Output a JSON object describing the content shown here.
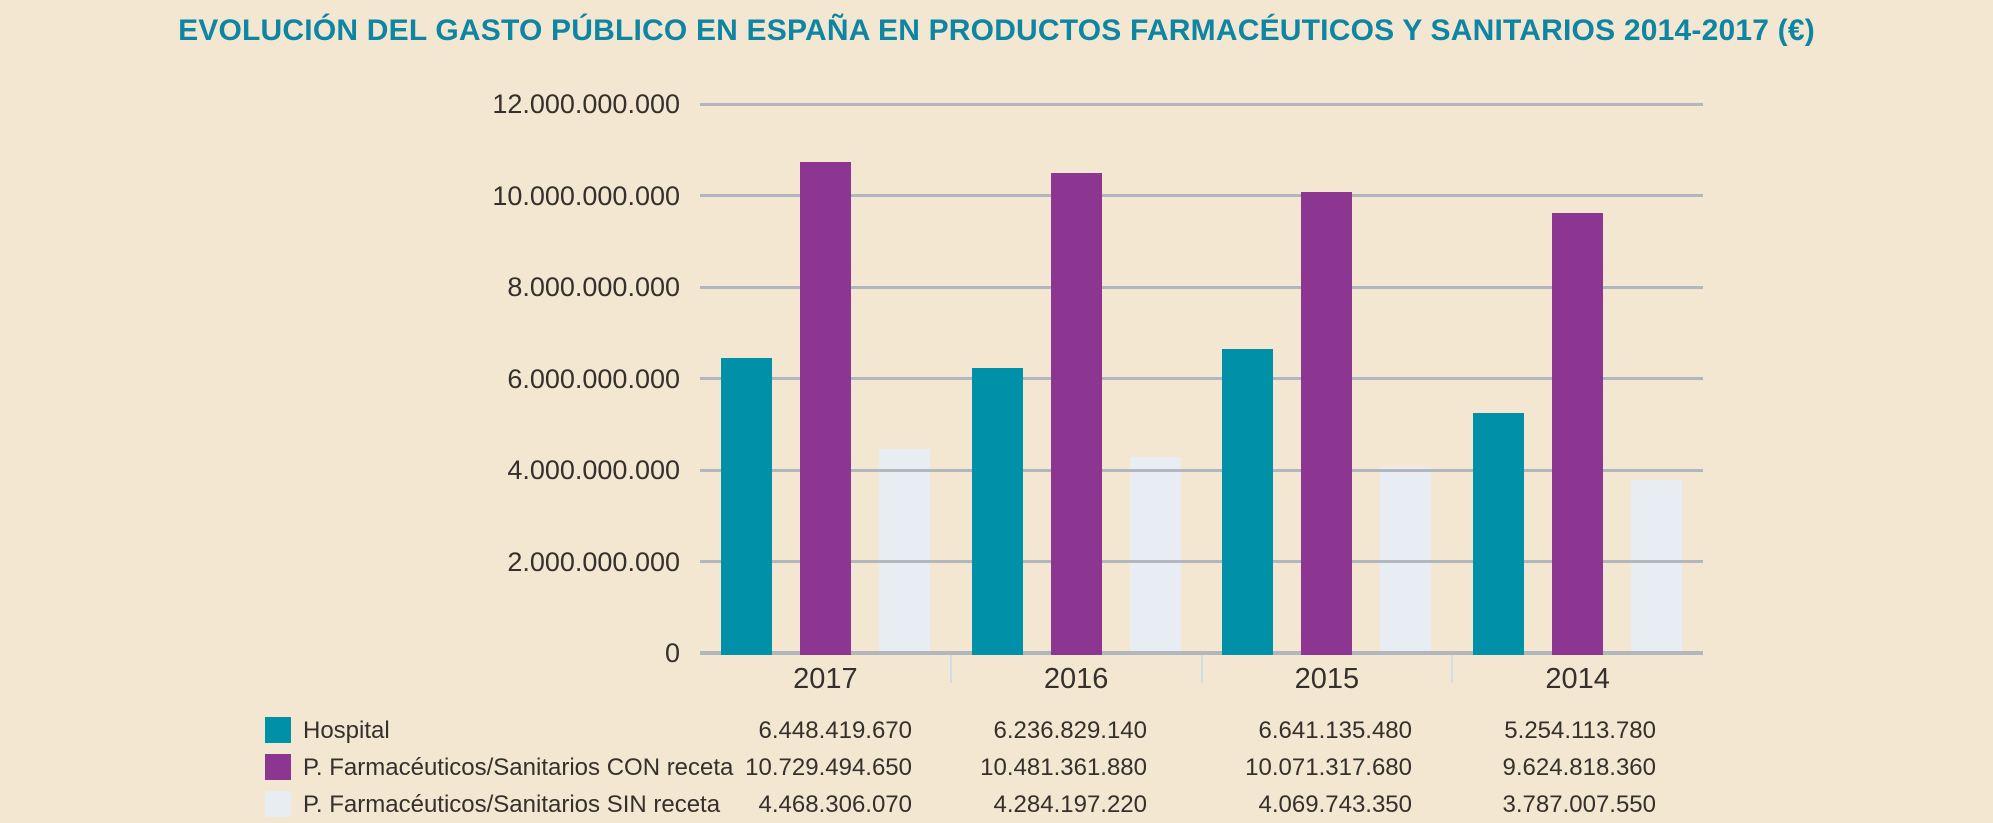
{
  "background_color": "#f3e7d1",
  "chart_data": {
    "type": "bar",
    "title": "EVOLUCIÓN DEL GASTO PÚBLICO EN ESPAÑA EN PRODUCTOS FARMACÉUTICOS Y SANITARIOS 2014-2017 (€)",
    "title_color": "#0d85a3",
    "categories": [
      "2017",
      "2016",
      "2015",
      "2014"
    ],
    "series": [
      {
        "key": "hospital",
        "name": "Hospital",
        "color": "#0091a8",
        "values": [
          6448419670,
          6236829140,
          6641135480,
          5254113780
        ]
      },
      {
        "key": "con-receta",
        "name": "P. Farmacéuticos/Sanitarios CON receta",
        "color": "#8c3591",
        "values": [
          10729494650,
          10481361880,
          10071317680,
          9624818360
        ]
      },
      {
        "key": "sin-receta",
        "name": "P. Farmacéuticos/Sanitarios SIN receta",
        "color": "#e8edf4",
        "values": [
          4468306070,
          4284197220,
          4069743350,
          3787007550
        ]
      }
    ],
    "ylim": [
      0,
      12000000000
    ],
    "ytick_step": 2000000000,
    "ytick_labels": [
      "0",
      "2.000.000.000",
      "4.000.000.000",
      "6.000.000.000",
      "8.000.000.000",
      "10.000.000.000",
      "12.000.000.000"
    ],
    "grid": true,
    "grid_color": "#b1b7bc",
    "axis_color": "#b1b7bc",
    "text_color": "#35302b",
    "legend_position": "bottom-table"
  },
  "legend_table": {
    "rows": [
      {
        "label": "Hospital",
        "values": [
          "6.448.419.670",
          "6.236.829.140",
          "6.641.135.480",
          "5.254.113.780"
        ]
      },
      {
        "label": "P. Farmacéuticos/Sanitarios CON receta",
        "values": [
          "10.729.494.650",
          "10.481.361.880",
          "10.071.317.680",
          "9.624.818.360"
        ]
      },
      {
        "label": "P. Farmacéuticos/Sanitarios SIN receta",
        "values": [
          "4.468.306.070",
          "4.284.197.220",
          "4.069.743.350",
          "3.787.007.550"
        ]
      }
    ]
  }
}
